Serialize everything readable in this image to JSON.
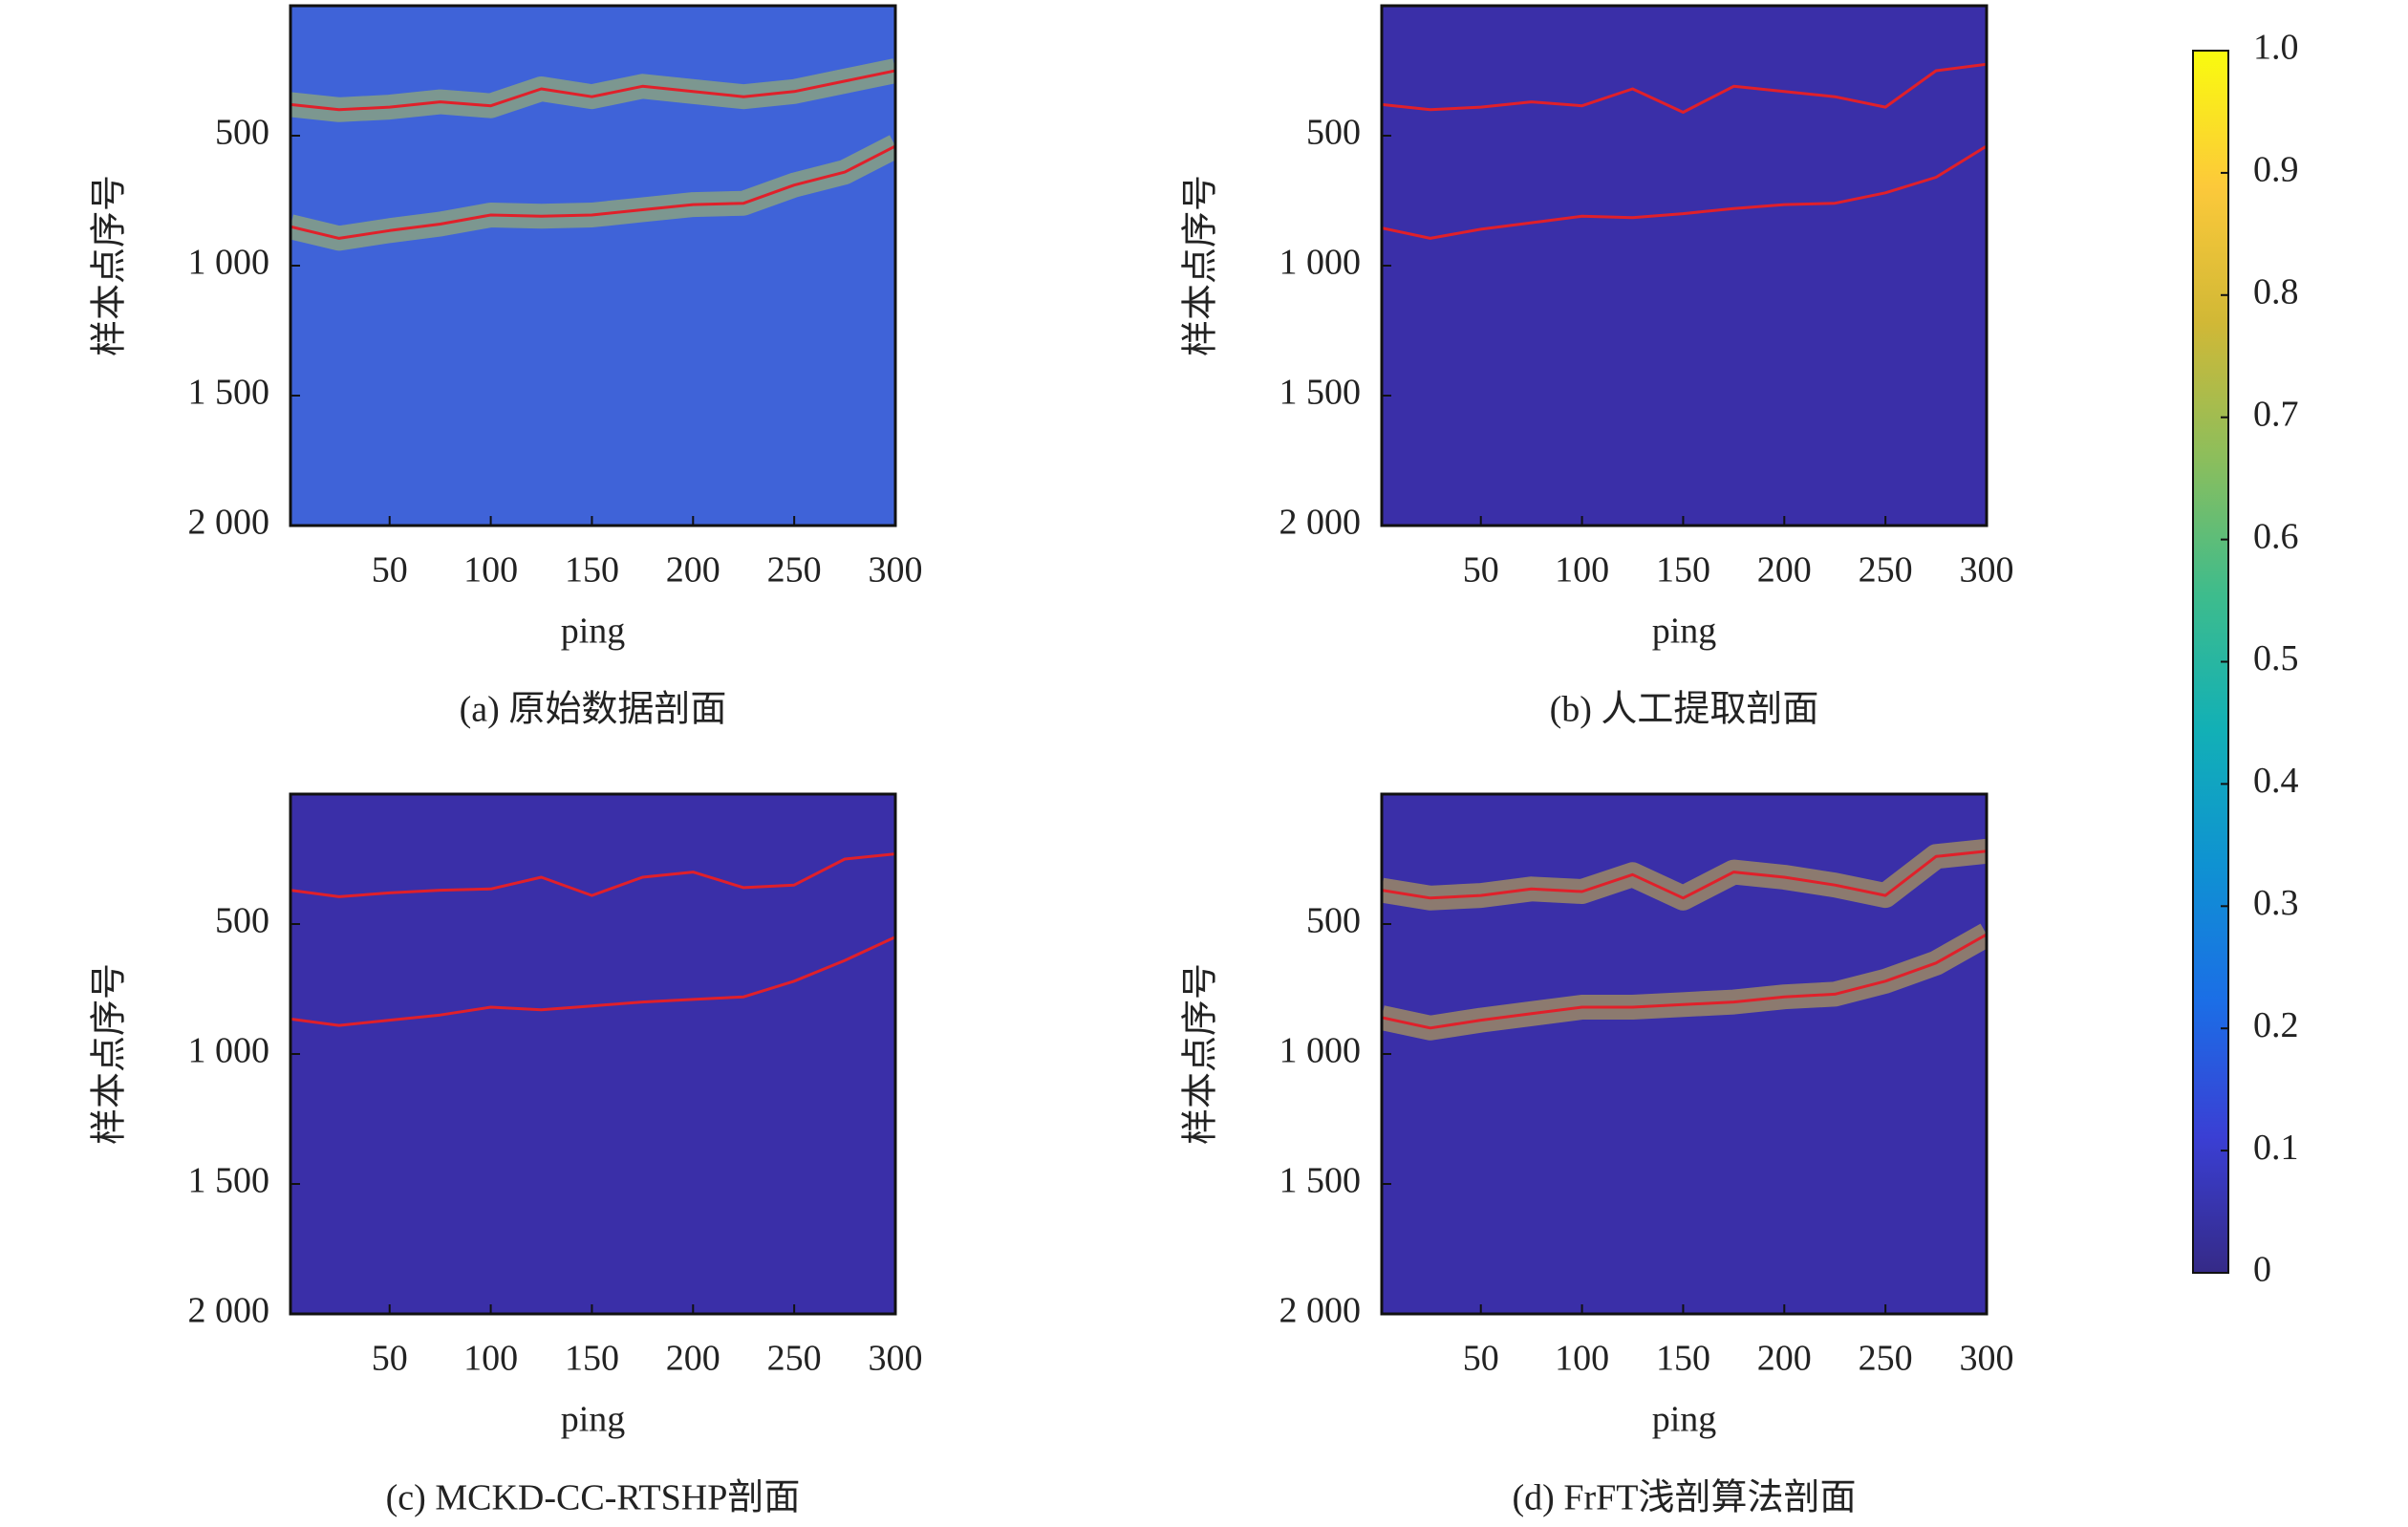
{
  "chart_data": [
    {
      "type": "heatmap",
      "caption": "(a) 原始数据剖面",
      "xlabel": "ping",
      "ylabel": "样本点序号",
      "xlim": [
        1,
        300
      ],
      "ylim": [
        0,
        2000
      ],
      "y_reversed": true,
      "xticks": [
        50,
        100,
        150,
        200,
        250,
        300
      ],
      "yticks": [
        500,
        {
          "value": 1000,
          "label": "1 000"
        },
        {
          "value": 1500,
          "label": "1 500"
        },
        {
          "value": 2000,
          "label": "2 000"
        }
      ],
      "background": "#3f63d8",
      "band_color": "#c8d83a",
      "x": [
        1,
        25,
        50,
        75,
        100,
        125,
        150,
        175,
        200,
        225,
        250,
        275,
        300
      ],
      "series": [
        {
          "color": "#e0202a",
          "values": [
            380,
            400,
            390,
            370,
            385,
            320,
            350,
            310,
            330,
            350,
            330,
            290,
            250
          ]
        },
        {
          "color": "#e0202a",
          "values": [
            850,
            895,
            865,
            840,
            805,
            810,
            805,
            785,
            765,
            760,
            690,
            640,
            540
          ]
        }
      ]
    },
    {
      "type": "heatmap",
      "caption": "(b) 人工提取剖面",
      "xlabel": "ping",
      "ylabel": "样本点序号",
      "xlim": [
        1,
        300
      ],
      "ylim": [
        0,
        2000
      ],
      "y_reversed": true,
      "xticks": [
        50,
        100,
        150,
        200,
        250,
        300
      ],
      "yticks": [
        500,
        {
          "value": 1000,
          "label": "1 000"
        },
        {
          "value": 1500,
          "label": "1 500"
        },
        {
          "value": 2000,
          "label": "2 000"
        }
      ],
      "background": "#3a2fa8",
      "x": [
        1,
        25,
        50,
        75,
        100,
        125,
        150,
        175,
        200,
        225,
        250,
        275,
        300
      ],
      "series": [
        {
          "color": "#e0202a",
          "values": [
            380,
            400,
            390,
            370,
            385,
            320,
            410,
            310,
            330,
            350,
            390,
            250,
            225
          ]
        },
        {
          "color": "#e0202a",
          "values": [
            855,
            895,
            860,
            835,
            810,
            815,
            800,
            780,
            765,
            760,
            720,
            660,
            540
          ]
        }
      ]
    },
    {
      "type": "heatmap",
      "caption": "(c) MCKD-CC-RTSHP剖面",
      "xlabel": "ping",
      "ylabel": "样本点序号",
      "xlim": [
        1,
        300
      ],
      "ylim": [
        0,
        2000
      ],
      "y_reversed": true,
      "xticks": [
        50,
        100,
        150,
        200,
        250,
        300
      ],
      "yticks": [
        500,
        {
          "value": 1000,
          "label": "1 000"
        },
        {
          "value": 1500,
          "label": "1 500"
        },
        {
          "value": 2000,
          "label": "2 000"
        }
      ],
      "background": "#3a2fa8",
      "x": [
        1,
        25,
        50,
        75,
        100,
        125,
        150,
        175,
        200,
        225,
        250,
        275,
        300
      ],
      "series": [
        {
          "color": "#e0202a",
          "values": [
            370,
            395,
            380,
            370,
            365,
            320,
            390,
            320,
            300,
            360,
            350,
            250,
            230
          ]
        },
        {
          "color": "#e0202a",
          "values": [
            865,
            890,
            870,
            850,
            820,
            830,
            815,
            800,
            790,
            780,
            720,
            640,
            550
          ]
        }
      ]
    },
    {
      "type": "heatmap",
      "caption": "(d) FrFT浅剖算法剖面",
      "xlabel": "ping",
      "ylabel": "样本点序号",
      "xlim": [
        1,
        300
      ],
      "ylim": [
        0,
        2000
      ],
      "y_reversed": true,
      "xticks": [
        50,
        100,
        150,
        200,
        250,
        300
      ],
      "yticks": [
        500,
        {
          "value": 1000,
          "label": "1 000"
        },
        {
          "value": 1500,
          "label": "1 500"
        },
        {
          "value": 2000,
          "label": "2 000"
        }
      ],
      "background": "#3a2fa8",
      "band_color": "#f2d82a",
      "x": [
        1,
        25,
        50,
        75,
        100,
        125,
        150,
        175,
        200,
        225,
        250,
        275,
        300
      ],
      "series": [
        {
          "color": "#e0202a",
          "values": [
            370,
            400,
            390,
            365,
            375,
            310,
            400,
            300,
            320,
            350,
            390,
            240,
            220
          ]
        },
        {
          "color": "#e0202a",
          "values": [
            860,
            900,
            870,
            845,
            820,
            820,
            810,
            800,
            780,
            770,
            720,
            650,
            540
          ]
        }
      ]
    },
    {
      "type": "colorbar",
      "clim": [
        0,
        1
      ],
      "colormap": [
        "#352a87",
        "#3a3fd4",
        "#1b6ee6",
        "#0f92d2",
        "#12b0b6",
        "#3ebc8c",
        "#8cbe5c",
        "#d1b836",
        "#fcc93a",
        "#f9fb0e"
      ],
      "ticks": [
        0,
        0.1,
        0.2,
        0.3,
        0.4,
        0.5,
        0.6,
        0.7,
        0.8,
        0.9,
        {
          "value": 1,
          "label": "1.0"
        }
      ]
    }
  ]
}
